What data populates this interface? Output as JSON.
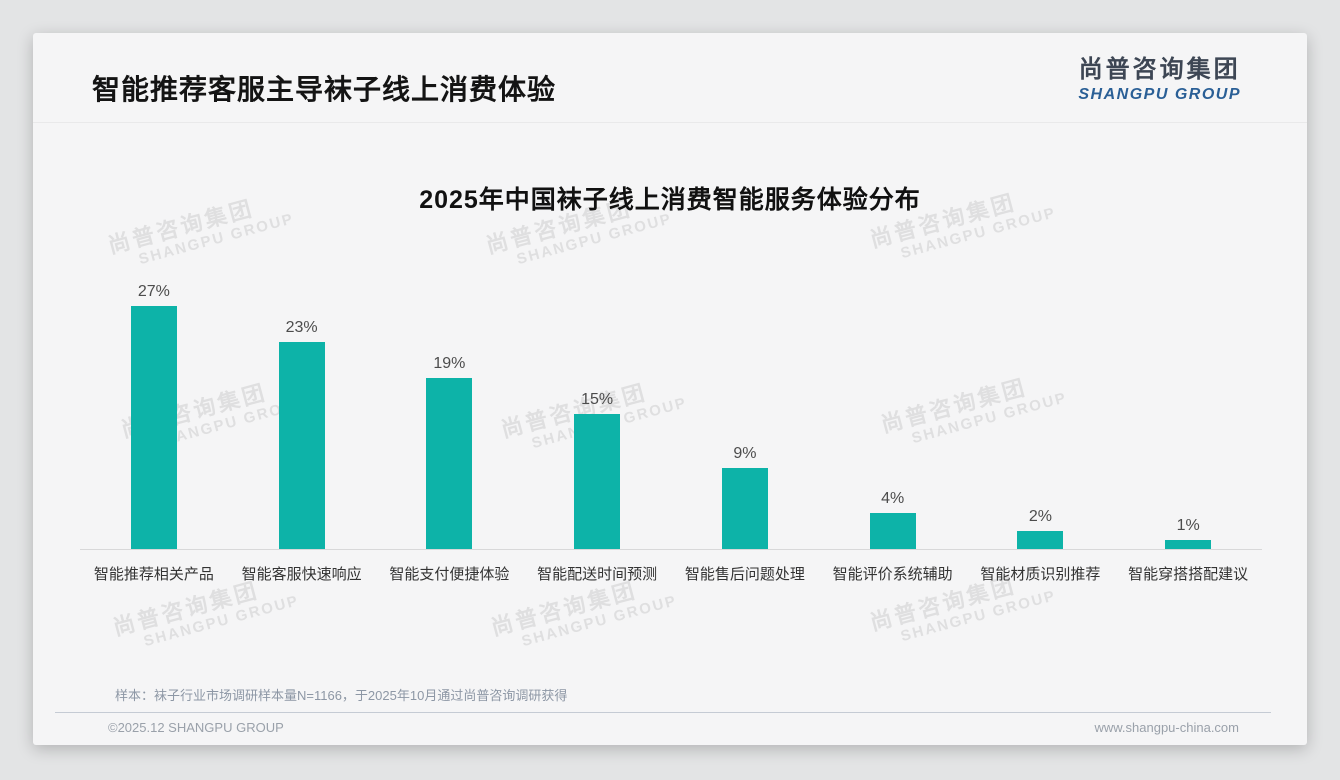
{
  "header": {
    "title": "智能推荐客服主导袜子线上消费体验"
  },
  "logo": {
    "name_cn": "尚普咨询集团",
    "name_en": "SHANGPU GROUP"
  },
  "watermark": {
    "line1": "尚普咨询集团",
    "line2": "SHANGPU GROUP"
  },
  "chart_data": {
    "type": "bar",
    "title": "2025年中国袜子线上消费智能服务体验分布",
    "categories": [
      "智能推荐相关产品",
      "智能客服快速响应",
      "智能支付便捷体验",
      "智能配送时间预测",
      "智能售后问题处理",
      "智能评价系统辅助",
      "智能材质识别推荐",
      "智能穿搭搭配建议"
    ],
    "values": [
      27,
      23,
      19,
      15,
      9,
      4,
      2,
      1
    ],
    "unit": "%",
    "bar_color": "#0db3a8",
    "xlabel": "",
    "ylabel": "",
    "ylim": [
      0,
      30
    ],
    "grid": false,
    "legend": false,
    "value_labels_shown": true
  },
  "note": "样本：袜子行业市场调研样本量N=1166，于2025年10月通过尚普咨询调研获得",
  "footer": {
    "left": "©2025.12 SHANGPU GROUP",
    "right": "www.shangpu-china.com"
  },
  "colors": {
    "accent": "#0db3a8",
    "logo_blue": "#2a5f96",
    "logo_dark": "#3d4654",
    "title_text": "#141414",
    "axis_line": "#d8d8d9",
    "note_text": "#8d97a5",
    "footer_text": "#9aa1aa"
  }
}
